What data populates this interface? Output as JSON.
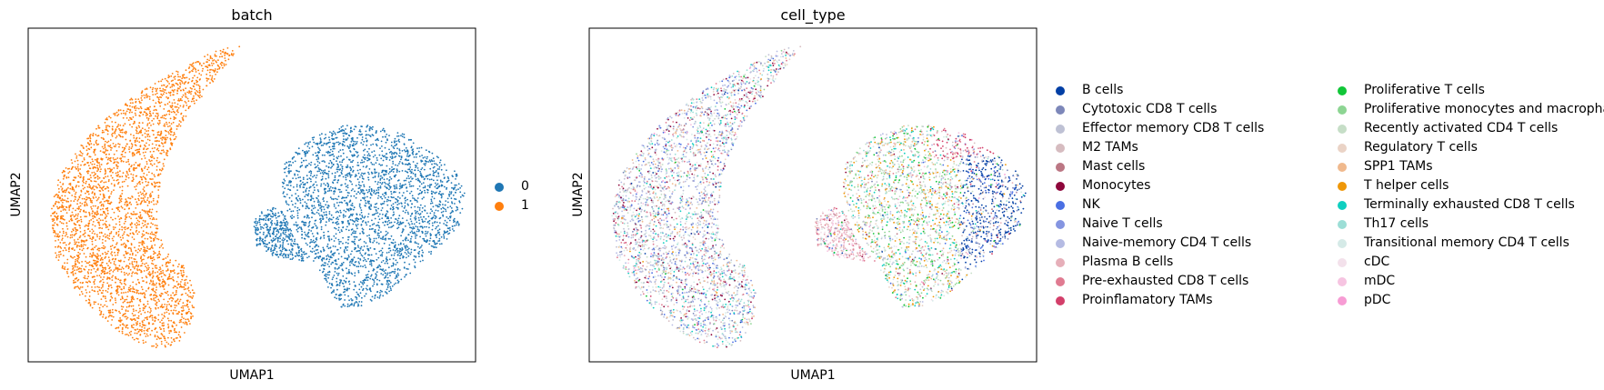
{
  "chart_data": [
    {
      "type": "scatter",
      "title": "batch",
      "xlabel": "UMAP1",
      "ylabel": "UMAP2",
      "legend": "right",
      "series": [
        {
          "name": "0",
          "color": "#1f77b4"
        },
        {
          "name": "1",
          "color": "#ff7f0e"
        }
      ]
    },
    {
      "type": "scatter",
      "title": "cell_type",
      "xlabel": "UMAP1",
      "ylabel": "UMAP2",
      "legend": "right",
      "series": [
        {
          "name": "B cells",
          "color": "#023fa5"
        },
        {
          "name": "Cytotoxic CD8 T cells",
          "color": "#7d87b9"
        },
        {
          "name": "Effector memory CD8 T cells",
          "color": "#bec1d4"
        },
        {
          "name": "M2 TAMs",
          "color": "#d6bcc0"
        },
        {
          "name": "Mast cells",
          "color": "#bb7784"
        },
        {
          "name": "Monocytes",
          "color": "#8e063b"
        },
        {
          "name": "NK",
          "color": "#4a6fe3"
        },
        {
          "name": "Naive T cells",
          "color": "#8595e1"
        },
        {
          "name": "Naive-memory CD4 T cells",
          "color": "#b5bbe3"
        },
        {
          "name": "Plasma B cells",
          "color": "#e6afb9"
        },
        {
          "name": "Pre-exhausted CD8 T cells",
          "color": "#e07b91"
        },
        {
          "name": "Proinflamatory TAMs",
          "color": "#d33f6a"
        },
        {
          "name": "Proliferative T cells",
          "color": "#11c638"
        },
        {
          "name": "Proliferative monocytes and macrophages",
          "color": "#8dd593"
        },
        {
          "name": "Recently activated CD4 T cells",
          "color": "#c6dec7"
        },
        {
          "name": "Regulatory T cells",
          "color": "#ead3c6"
        },
        {
          "name": "SPP1 TAMs",
          "color": "#f0b98d"
        },
        {
          "name": "T helper cells",
          "color": "#ef9708"
        },
        {
          "name": "Terminally exhausted CD8 T cells",
          "color": "#0fcfc0"
        },
        {
          "name": "Th17 cells",
          "color": "#9cded6"
        },
        {
          "name": "Transitional memory CD4 T cells",
          "color": "#d5eae7"
        },
        {
          "name": "cDC",
          "color": "#f3e1eb"
        },
        {
          "name": "mDC",
          "color": "#f6c4e1"
        },
        {
          "name": "pDC",
          "color": "#f79cd4"
        }
      ]
    }
  ]
}
